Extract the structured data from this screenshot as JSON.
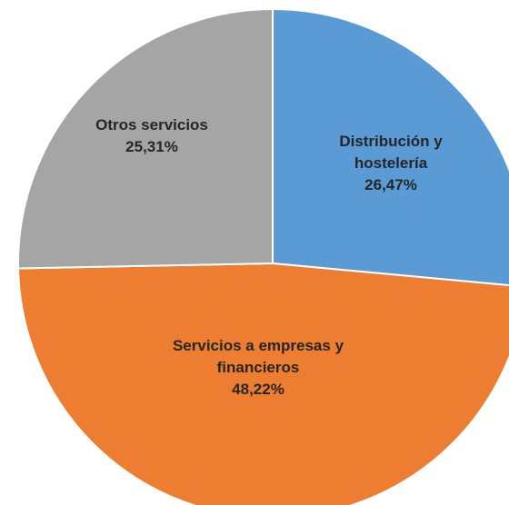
{
  "chart_data": {
    "type": "pie",
    "categories": [
      "Distribución y hostelería",
      "Servicios a empresas y financieros",
      "Otros servicios"
    ],
    "values": [
      26.47,
      48.22,
      25.31
    ],
    "value_labels": [
      "26,47%",
      "48,22%",
      "25,31%"
    ],
    "colors": [
      "#5b9bd5",
      "#ed7d31",
      "#a5a5a5"
    ]
  }
}
